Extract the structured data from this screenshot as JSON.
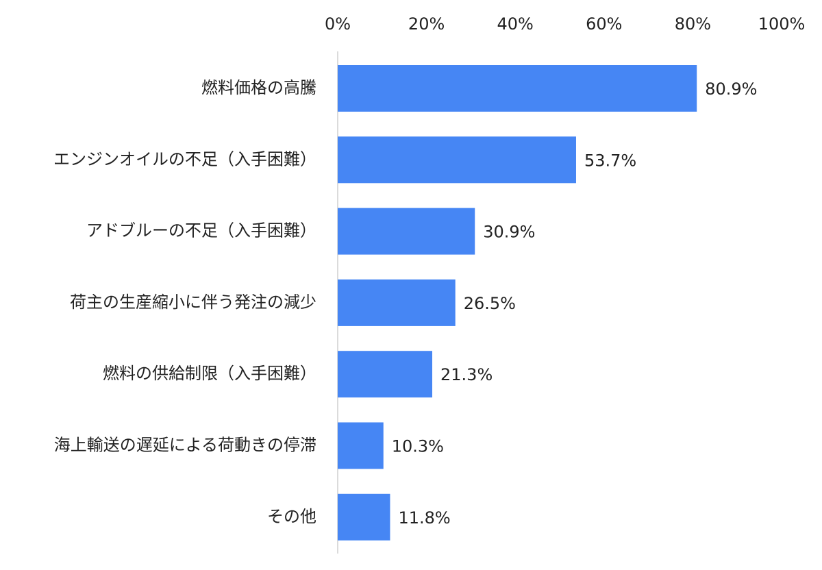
{
  "chart_data": {
    "type": "hbar",
    "categories": [
      "燃料価格の高騰",
      "エンジンオイルの不足（入手困難）",
      "アドブルーの不足（入手困難）",
      "荷主の生産縮小に伴う発注の減少",
      "燃料の供給制限（入手困難）",
      "海上輸送の遅延による荷動きの停滞",
      "その他"
    ],
    "values": [
      80.9,
      53.7,
      30.9,
      26.5,
      21.3,
      10.3,
      11.8
    ],
    "value_labels": [
      "80.9%",
      "53.7%",
      "30.9%",
      "26.5%",
      "21.3%",
      "10.3%",
      "11.8%"
    ],
    "color": "#4686f4",
    "xlim": [
      0,
      100
    ],
    "xticks": [
      {
        "value": 0,
        "label": "0%"
      },
      {
        "value": 20,
        "label": "20%"
      },
      {
        "value": 40,
        "label": "40%"
      },
      {
        "value": 60,
        "label": "60%"
      },
      {
        "value": 80,
        "label": "80%"
      },
      {
        "value": 100,
        "label": "100%"
      }
    ],
    "grid": false
  }
}
